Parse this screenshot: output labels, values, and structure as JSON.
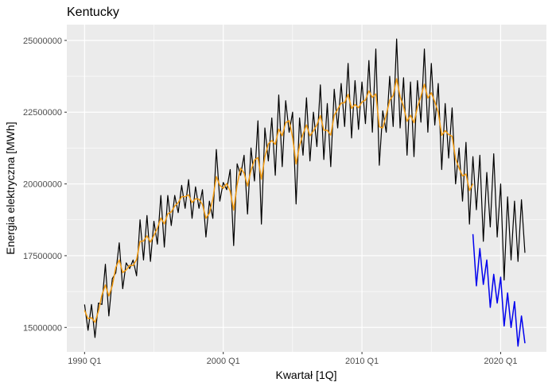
{
  "chart_data": {
    "type": "line",
    "title": "Kentucky",
    "xlabel": "Kwartał [1Q]",
    "ylabel": "Energia elektryczna [MWh]",
    "xlim": [
      1988.72,
      2023.3
    ],
    "ylim": [
      14150000,
      25550000
    ],
    "x_ticks": [
      1990,
      2000,
      2010,
      2020
    ],
    "x_tick_labels": [
      "1990 Q1",
      "2000 Q1",
      "2010 Q1",
      "2020 Q1"
    ],
    "y_ticks": [
      15000000,
      17500000,
      20000000,
      22500000,
      25000000
    ],
    "y_tick_labels": [
      "15000000",
      "17500000",
      "20000000",
      "22500000",
      "25000000"
    ],
    "grid": true,
    "legend": "none",
    "series": [
      {
        "color": "#000000",
        "x": [
          1990.0,
          1990.25,
          1990.5,
          1990.75,
          1991.0,
          1991.25,
          1991.5,
          1991.75,
          1992.0,
          1992.25,
          1992.5,
          1992.75,
          1993.0,
          1993.25,
          1993.5,
          1993.75,
          1994.0,
          1994.25,
          1994.5,
          1994.75,
          1995.0,
          1995.25,
          1995.5,
          1995.75,
          1996.0,
          1996.25,
          1996.5,
          1996.75,
          1997.0,
          1997.25,
          1997.5,
          1997.75,
          1998.0,
          1998.25,
          1998.5,
          1998.75,
          1999.0,
          1999.25,
          1999.5,
          1999.75,
          2000.0,
          2000.25,
          2000.5,
          2000.75,
          2001.0,
          2001.25,
          2001.5,
          2001.75,
          2002.0,
          2002.25,
          2002.5,
          2002.75,
          2003.0,
          2003.25,
          2003.5,
          2003.75,
          2004.0,
          2004.25,
          2004.5,
          2004.75,
          2005.0,
          2005.25,
          2005.5,
          2005.75,
          2006.0,
          2006.25,
          2006.5,
          2006.75,
          2007.0,
          2007.25,
          2007.5,
          2007.75,
          2008.0,
          2008.25,
          2008.5,
          2008.75,
          2009.0,
          2009.25,
          2009.5,
          2009.75,
          2010.0,
          2010.25,
          2010.5,
          2010.75,
          2011.0,
          2011.25,
          2011.5,
          2011.75,
          2012.0,
          2012.25,
          2012.5,
          2012.75,
          2013.0,
          2013.25,
          2013.5,
          2013.75,
          2014.0,
          2014.25,
          2014.5,
          2014.75,
          2015.0,
          2015.25,
          2015.5,
          2015.75,
          2016.0,
          2016.25,
          2016.5,
          2016.75,
          2017.0,
          2017.25,
          2017.5,
          2017.75,
          2018.0,
          2018.25,
          2018.5,
          2018.75,
          2019.0,
          2019.25,
          2019.5,
          2019.75,
          2020.0,
          2020.25,
          2020.5,
          2020.75,
          2021.0,
          2021.25,
          2021.5,
          2021.75
        ],
        "values": [
          15800000,
          14900000,
          15800000,
          14650000,
          15850000,
          15800000,
          17200000,
          15400000,
          16700000,
          16900000,
          17950000,
          16350000,
          17250000,
          17050000,
          17350000,
          16800000,
          18750000,
          17350000,
          18900000,
          17300000,
          18700000,
          17900000,
          19600000,
          17800000,
          19600000,
          18550000,
          19600000,
          19000000,
          19950000,
          19150000,
          20150000,
          18800000,
          19900000,
          19150000,
          19800000,
          18150000,
          19400000,
          18800000,
          21200000,
          19400000,
          20050000,
          19800000,
          20500000,
          17850000,
          20700000,
          20300000,
          21000000,
          18950000,
          21250000,
          20100000,
          22200000,
          18600000,
          21950000,
          20800000,
          22300000,
          20300000,
          23100000,
          20600000,
          22900000,
          21800000,
          22500000,
          19300000,
          22300000,
          21000000,
          23000000,
          20800000,
          22500000,
          21300000,
          23450000,
          20850000,
          22800000,
          20600000,
          23300000,
          21950000,
          23500000,
          22000000,
          24200000,
          21600000,
          23600000,
          21900000,
          23550000,
          22100000,
          24300000,
          21800000,
          24700000,
          20650000,
          22550000,
          21800000,
          23750000,
          22000000,
          25050000,
          21950000,
          23700000,
          21000000,
          23550000,
          20950000,
          23600000,
          22150000,
          24700000,
          21800000,
          24200000,
          22050000,
          23500000,
          20500000,
          22800000,
          20900000,
          22650000,
          20000000,
          21250000,
          19400000,
          21450000,
          18600000,
          20950000,
          19100000,
          21000000,
          18000000,
          20400000,
          18500000,
          21050000,
          18150000,
          20000000,
          16650000,
          19550000,
          17350000,
          19400000,
          17300000,
          19450000,
          17600000
        ],
        "note_end": [
          2021.75,
          17750000
        ]
      }
    ]
  }
}
